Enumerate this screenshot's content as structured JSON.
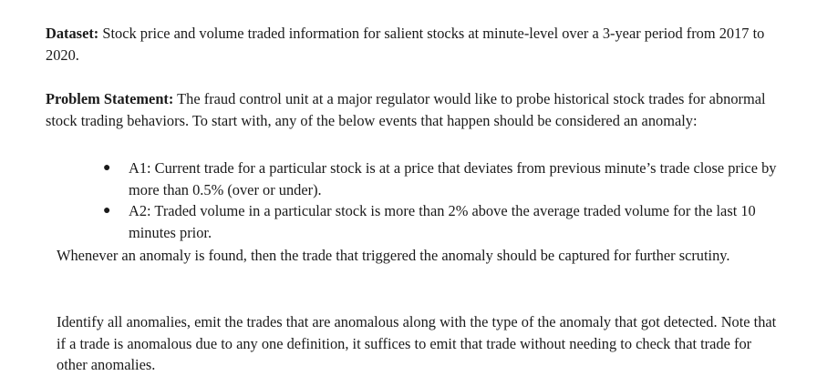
{
  "dataset": {
    "label": "Dataset:",
    "text": " Stock price and volume traded information for salient stocks at minute-level over a 3-year period from 2017 to 2020."
  },
  "problem": {
    "label": "Problem Statement:",
    "text": " The fraud control unit at a major regulator would like to probe historical stock trades for abnormal stock trading behaviors. To start with, any of the below events that happen should be considered an anomaly:"
  },
  "bullets": [
    {
      "text": "A1: Current trade for a particular stock is at a price that deviates from previous minute’s trade close price by more than 0.5% (over or under)."
    },
    {
      "text": "A2: Traded volume in a particular stock is more than 2% above the average traded volume for the last 10 minutes prior."
    }
  ],
  "whenever": {
    "text": "Whenever an anomaly is found, then the trade that triggered the anomaly should be captured for further scrutiny."
  },
  "identify": {
    "text": "Identify all anomalies, emit the trades that are anomalous along with the type of the anomaly that got detected. Note that if a trade is anomalous due to any one definition, it suffices to emit that trade without needing to check that trade for other anomalies."
  }
}
